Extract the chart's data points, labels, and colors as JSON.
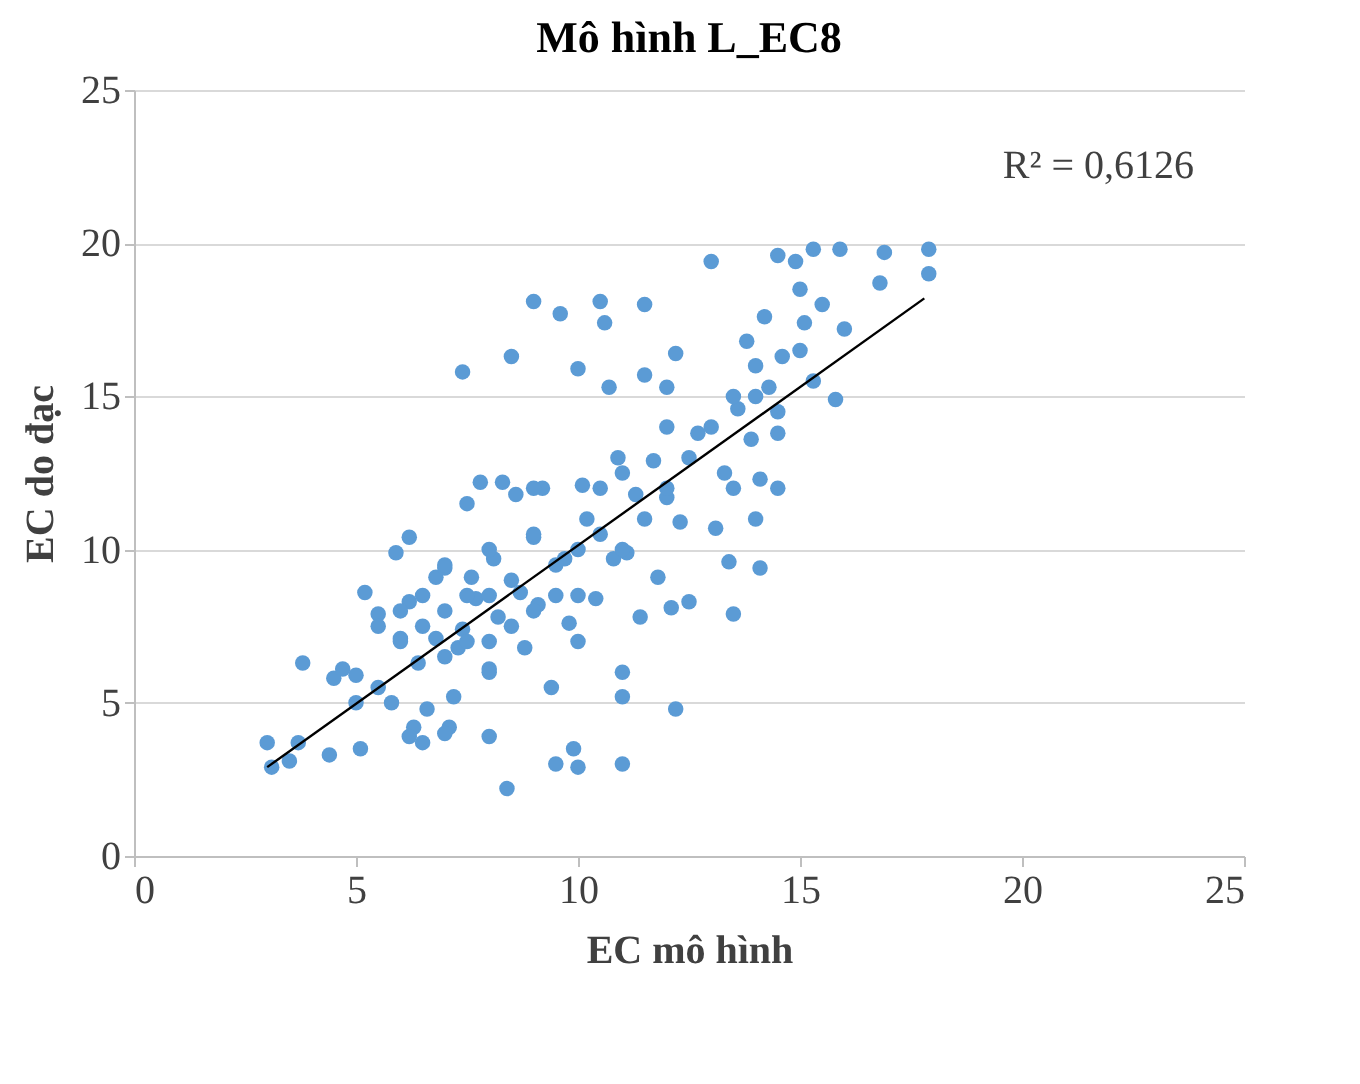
{
  "chart_data": {
    "type": "scatter",
    "title": "Mô hình L_EC8",
    "xlabel": "EC mô hình",
    "ylabel": "EC do đạc",
    "annotations": [
      "R² = 0,6126"
    ],
    "xlim": [
      0,
      25
    ],
    "xticks": [
      0,
      5,
      10,
      15,
      20,
      25
    ],
    "ylim": [
      0,
      25
    ],
    "yticks": [
      0,
      5,
      10,
      15,
      20,
      25
    ],
    "grid": "y",
    "series": [
      {
        "marker": "circle",
        "color": "#5b9bd5",
        "x": [
          3.0,
          3.1,
          3.5,
          3.7,
          3.8,
          4.4,
          4.5,
          4.7,
          5.0,
          5.1,
          5.2,
          5.5,
          5.5,
          5.8,
          5.9,
          6.2,
          6.0,
          6.2,
          6.4,
          6.3,
          6.2,
          6.6,
          6.8,
          6.8,
          7.0,
          7.1,
          7.2,
          7.3,
          7.4,
          7.5,
          7.4,
          7.6,
          7.7,
          7.8,
          8.0,
          8.0,
          8.1,
          8.2,
          8.3,
          8.4,
          8.5,
          8.6,
          8.7,
          8.8,
          9.0,
          9.0,
          9.1,
          9.2,
          9.4,
          9.5,
          9.6,
          9.7,
          9.8,
          9.9,
          10.0,
          10.0,
          10.1,
          10.2,
          10.4,
          10.5,
          10.6,
          10.7,
          10.8,
          10.9,
          11.0,
          11.0,
          11.1,
          11.3,
          11.4,
          11.5,
          11.5,
          11.7,
          11.8,
          12.0,
          12.1,
          12.0,
          12.2,
          12.2,
          12.3,
          12.5,
          12.7,
          13.0,
          13.1,
          13.3,
          13.4,
          13.5,
          13.6,
          13.8,
          13.9,
          14.1,
          14.1,
          14.2,
          14.3,
          14.5,
          14.5,
          14.6,
          14.9,
          15.0,
          15.1,
          15.3,
          15.3,
          15.8,
          16.0,
          15.9,
          16.8,
          16.9,
          17.9,
          17.9,
          6.5,
          7.0,
          7.5,
          8.0,
          8.5,
          9.0,
          9.5,
          10.0,
          10.5,
          9.0,
          8.0,
          7.0,
          6.0,
          6.5,
          7.5,
          8.5,
          9.5,
          10.0,
          11.0,
          11.5,
          12.0,
          12.5,
          13.0,
          13.5,
          14.0,
          14.5,
          14.0,
          15.0,
          15.5,
          7.0,
          6.0,
          5.5,
          8.0,
          9.0,
          10.5,
          11.0,
          12.0,
          13.5,
          14.5,
          14.0,
          8.0,
          7.0,
          6.5,
          5.0,
          10.0,
          11.0
        ],
        "values": [
          3.7,
          2.9,
          3.1,
          3.7,
          6.3,
          3.3,
          5.8,
          6.1,
          5.9,
          3.5,
          8.6,
          5.5,
          7.9,
          5.0,
          9.9,
          10.4,
          7.1,
          8.3,
          6.3,
          4.2,
          3.9,
          4.8,
          7.1,
          9.1,
          9.4,
          4.2,
          5.2,
          6.8,
          7.4,
          11.5,
          15.8,
          9.1,
          8.4,
          12.2,
          3.9,
          6.1,
          9.7,
          7.8,
          12.2,
          2.2,
          16.3,
          11.8,
          8.6,
          6.8,
          10.4,
          18.1,
          8.2,
          12.0,
          5.5,
          3.0,
          17.7,
          9.7,
          7.6,
          3.5,
          2.9,
          15.9,
          12.1,
          11.0,
          8.4,
          18.1,
          17.4,
          15.3,
          9.7,
          13.0,
          5.2,
          3.0,
          9.9,
          11.8,
          7.8,
          18.0,
          15.7,
          12.9,
          9.1,
          11.7,
          8.1,
          15.3,
          16.4,
          4.8,
          10.9,
          8.3,
          13.8,
          19.4,
          10.7,
          12.5,
          9.6,
          7.9,
          14.6,
          16.8,
          13.6,
          9.4,
          12.3,
          17.6,
          15.3,
          13.8,
          19.6,
          16.3,
          19.4,
          18.5,
          17.4,
          15.5,
          19.8,
          14.9,
          17.2,
          19.8,
          18.7,
          19.7,
          19.0,
          19.8,
          7.5,
          8.0,
          7.0,
          8.5,
          9.0,
          8.0,
          9.5,
          10.0,
          10.5,
          10.5,
          10.0,
          9.5,
          8.0,
          8.5,
          8.5,
          7.5,
          8.5,
          8.5,
          10.0,
          11.0,
          12.0,
          13.0,
          14.0,
          15.0,
          15.0,
          14.5,
          16.0,
          16.5,
          18.0,
          6.5,
          7.0,
          7.5,
          7.0,
          12.0,
          12.0,
          12.5,
          14.0,
          12.0,
          12.0,
          11.0,
          6.0,
          4.0,
          3.7,
          5.0,
          7.0,
          6.0
        ]
      },
      {
        "type": "line",
        "marker": "none",
        "color": "#000000",
        "x": [
          3.0,
          17.8
        ],
        "values": [
          2.9,
          18.2
        ]
      }
    ]
  }
}
